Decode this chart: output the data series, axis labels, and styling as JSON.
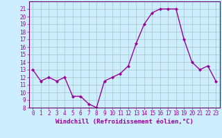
{
  "x": [
    0,
    1,
    2,
    3,
    4,
    5,
    6,
    7,
    8,
    9,
    10,
    11,
    12,
    13,
    14,
    15,
    16,
    17,
    18,
    19,
    20,
    21,
    22,
    23
  ],
  "y": [
    13,
    11.5,
    12,
    11.5,
    12,
    9.5,
    9.5,
    8.5,
    8,
    11.5,
    12,
    12.5,
    13.5,
    16.5,
    19,
    20.5,
    21,
    21,
    21,
    17,
    14,
    13,
    13.5,
    11.5
  ],
  "line_color": "#990099",
  "marker": "D",
  "marker_size": 2.0,
  "bg_color": "#cceeff",
  "grid_color": "#aacccc",
  "xlabel": "Windchill (Refroidissement éolien,°C)",
  "xlim": [
    -0.5,
    23.5
  ],
  "ylim": [
    8,
    22
  ],
  "yticks": [
    8,
    9,
    10,
    11,
    12,
    13,
    14,
    15,
    16,
    17,
    18,
    19,
    20,
    21
  ],
  "xticks": [
    0,
    1,
    2,
    3,
    4,
    5,
    6,
    7,
    8,
    9,
    10,
    11,
    12,
    13,
    14,
    15,
    16,
    17,
    18,
    19,
    20,
    21,
    22,
    23
  ],
  "tick_label_fontsize": 5.5,
  "xlabel_fontsize": 6.5,
  "line_width": 1.0,
  "spine_color": "#660066"
}
